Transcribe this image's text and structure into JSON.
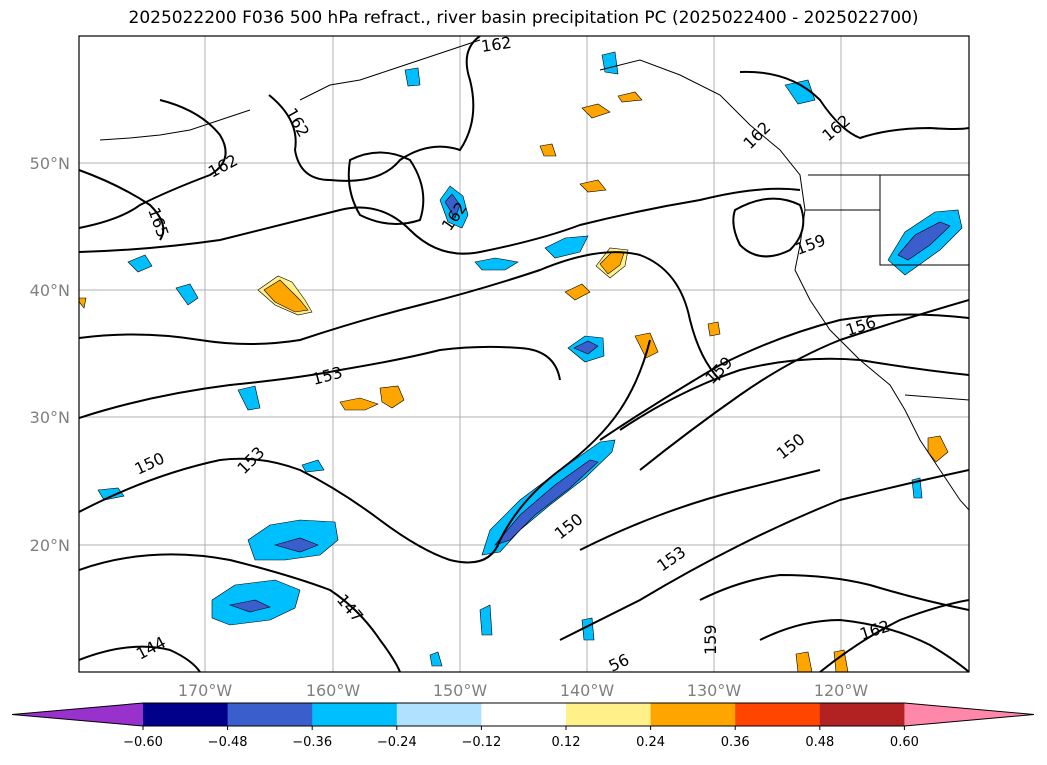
{
  "title": "2025022200 F036 500 hPa refract., river basin precipitation PC (2025022400 - 2025022700)",
  "map": {
    "lat_labels": [
      "50°N",
      "40°N",
      "30°N",
      "20°N"
    ],
    "lon_labels": [
      "170°W",
      "160°W",
      "150°W",
      "140°W",
      "130°W",
      "120°W"
    ],
    "contour_labels": [
      {
        "text": "162"
      },
      {
        "text": "162"
      },
      {
        "text": "162"
      },
      {
        "text": "162"
      },
      {
        "text": "162"
      },
      {
        "text": "162"
      },
      {
        "text": "162"
      },
      {
        "text": "165"
      },
      {
        "text": "159"
      },
      {
        "text": "156"
      },
      {
        "text": "159"
      },
      {
        "text": "153"
      },
      {
        "text": "150"
      },
      {
        "text": "153"
      },
      {
        "text": "150"
      },
      {
        "text": "150"
      },
      {
        "text": "147"
      },
      {
        "text": "153"
      },
      {
        "text": "159"
      },
      {
        "text": "144"
      },
      {
        "text": "56"
      }
    ]
  },
  "colorbar": {
    "ticks": [
      "−0.60",
      "−0.48",
      "−0.36",
      "−0.24",
      "−0.12",
      "0.12",
      "0.24",
      "0.36",
      "0.48",
      "0.60"
    ],
    "colors": [
      "#9932cc",
      "#00008b",
      "#3a5fcd",
      "#00bfff",
      "#b0e2ff",
      "#ffffff",
      "#fff08a",
      "#ffa500",
      "#ff4500",
      "#b22222",
      "#ff88aa"
    ]
  }
}
